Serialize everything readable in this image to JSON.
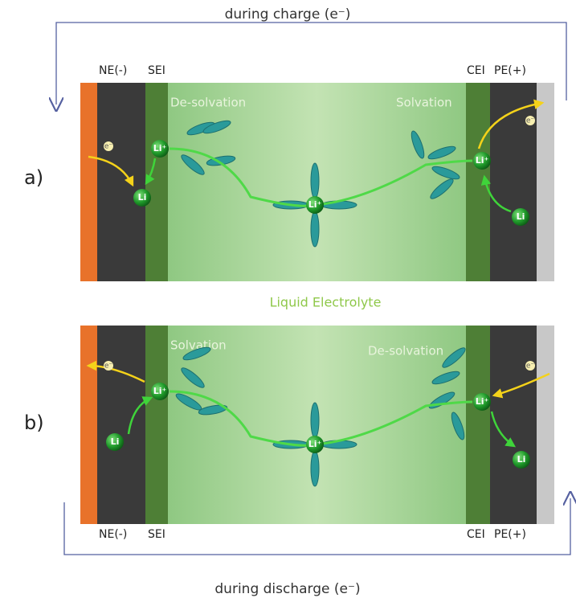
{
  "top_caption": "during charge (e⁻)",
  "bottom_caption": "during discharge (e⁻)",
  "middle_label": "Liquid Electrolyte",
  "panels": [
    {
      "label": "a)",
      "left_labels": [
        "NE(-)",
        "SEI"
      ],
      "right_labels": [
        "CEI",
        "PE(+)"
      ],
      "left_process": "De-solvation",
      "right_process": "Solvation",
      "ions": [
        "Li⁺",
        "Li⁺",
        "Li⁺"
      ],
      "atoms": [
        "Li",
        "Li"
      ],
      "electrons": [
        "e⁻",
        "e⁻"
      ]
    },
    {
      "label": "b)",
      "left_labels": [
        "NE(-)",
        "SEI"
      ],
      "right_labels": [
        "CEI",
        "PE(+)"
      ],
      "left_process": "Solvation",
      "right_process": "De-solvation",
      "ions": [
        "Li⁺",
        "Li⁺",
        "Li⁺"
      ],
      "atoms": [
        "Li",
        "Li"
      ],
      "electrons": [
        "e⁻",
        "e⁻"
      ]
    }
  ]
}
